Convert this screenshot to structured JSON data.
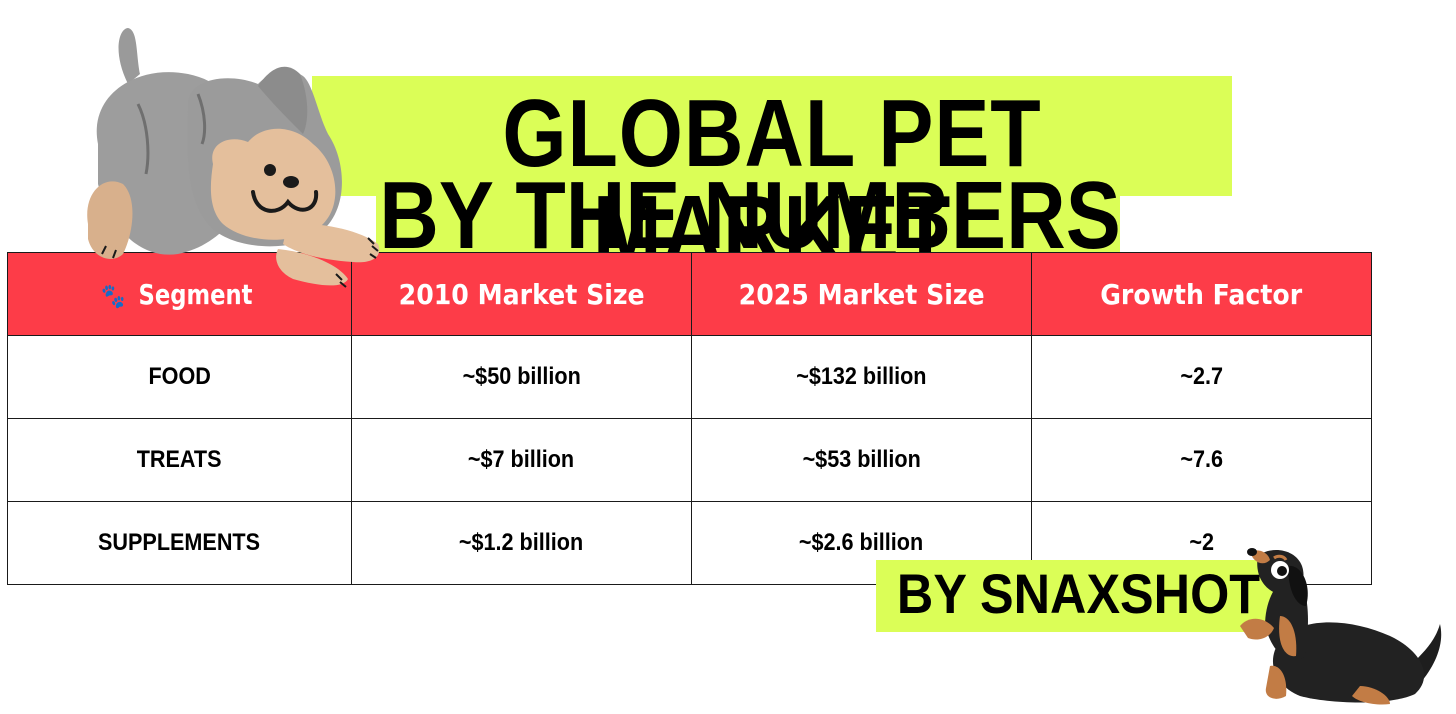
{
  "title": {
    "line1": "GLOBAL PET MARKET",
    "line2": "BY THE NUMBERS"
  },
  "byline": "BY SNAXSHOT",
  "colors": {
    "highlight": "#dbfe57",
    "header_bg": "#fd3c48",
    "header_text": "#ffffff"
  },
  "header_icon": "paw-prints-icon",
  "chart_data": {
    "type": "table",
    "title": "GLOBAL PET MARKET BY THE NUMBERS",
    "columns": [
      "Segment",
      "2010 Market Size",
      "2025 Market Size",
      "Growth Factor"
    ],
    "rows": [
      [
        "FOOD",
        "~$50 billion",
        "~$132 billion",
        "~2.7"
      ],
      [
        "TREATS",
        "~$7 billion",
        "~$53 billion",
        "~7.6"
      ],
      [
        "SUPPLEMENTS",
        "~$1.2 billion",
        "~$2.6 billion",
        "~2"
      ]
    ]
  }
}
